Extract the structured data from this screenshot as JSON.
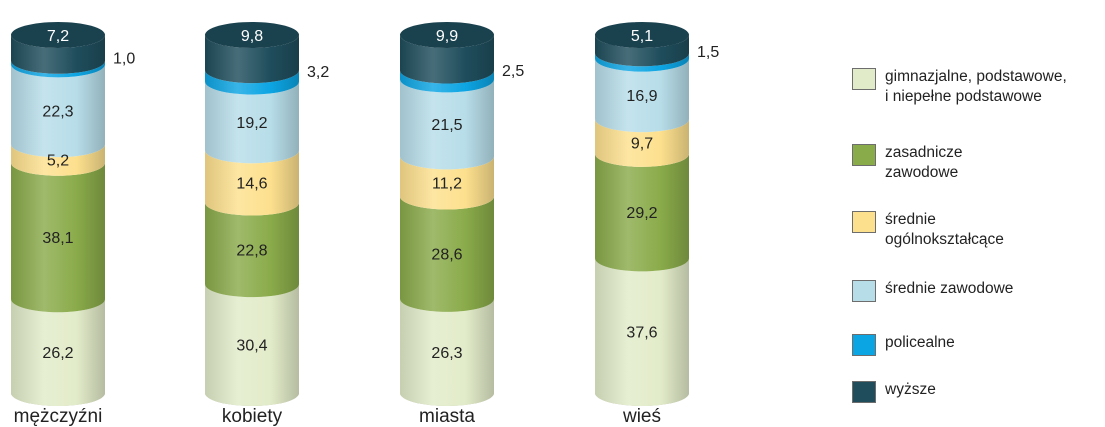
{
  "chart_data": {
    "type": "bar",
    "stacked": true,
    "bar_style": "cylinder",
    "categories": [
      "mężczyźni",
      "kobiety",
      "miasta",
      "wieś"
    ],
    "series": [
      {
        "name": "gimnazjalne, podstawowe, i niepełne podstawowe",
        "color": "#e2ebc9",
        "values": [
          26.2,
          30.4,
          26.3,
          37.6
        ],
        "labels": [
          "26,2",
          "30,4",
          "26,3",
          "37,6"
        ]
      },
      {
        "name": "zasadnicze zawodowe",
        "color": "#8aab4a",
        "values": [
          38.1,
          22.8,
          28.6,
          29.2
        ],
        "labels": [
          "38,1",
          "22,8",
          "28,6",
          "29,2"
        ]
      },
      {
        "name": "średnie ogólnokształcące",
        "color": "#fde08e",
        "values": [
          5.2,
          14.6,
          11.2,
          9.7
        ],
        "labels": [
          "5,2",
          "14,6",
          "11,2",
          "9,7"
        ]
      },
      {
        "name": "średnie zawodowe",
        "color": "#b7dde9",
        "values": [
          22.3,
          19.2,
          21.5,
          16.9
        ],
        "labels": [
          "22,3",
          "19,2",
          "21,5",
          "16,9"
        ]
      },
      {
        "name": "policealne",
        "color": "#0ca5e3",
        "values": [
          1.0,
          3.2,
          2.5,
          1.5
        ],
        "labels": [
          "1,0",
          "3,2",
          "2,5",
          "1,5"
        ]
      },
      {
        "name": "wyższe",
        "color": "#1f4d5c",
        "values": [
          7.2,
          9.8,
          9.9,
          5.1
        ],
        "labels": [
          "7,2",
          "9,8",
          "9,9",
          "5,1"
        ]
      }
    ],
    "ylim": [
      0,
      100
    ],
    "legend_position": "right"
  },
  "legend": [
    {
      "text": "gimnazjalne, podstawowe,\ni niepełne podstawowe"
    },
    {
      "text": "zasadnicze\nzawodowe"
    },
    {
      "text": "średnie\nogólnokształcące"
    },
    {
      "text": "średnie zawodowe"
    },
    {
      "text": "policealne"
    },
    {
      "text": "wyższe"
    }
  ]
}
